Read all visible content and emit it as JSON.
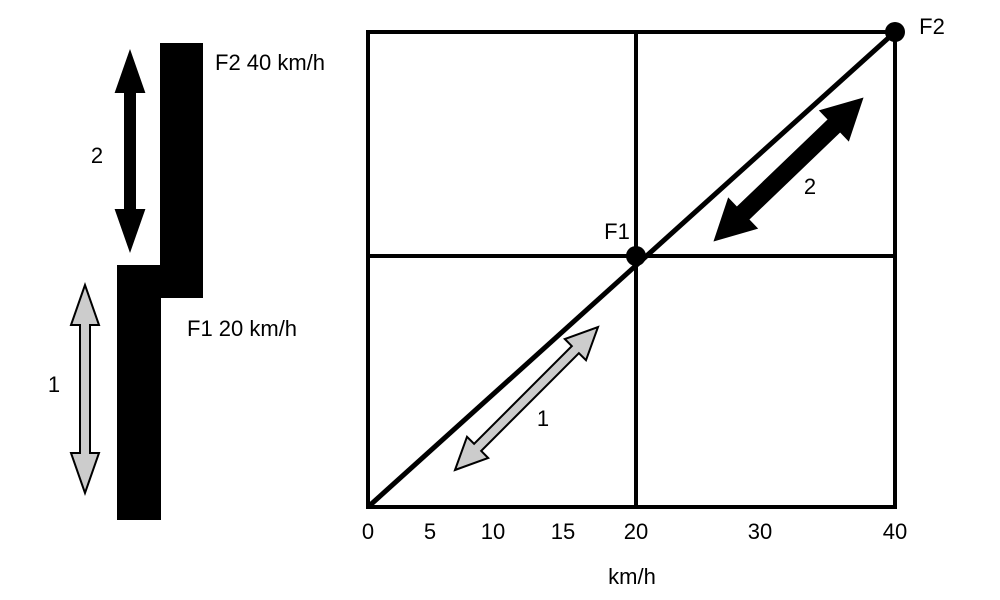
{
  "left_bar": {
    "upper_label": "F2 40 km/h",
    "lower_label": "F1 20 km/h",
    "arrows": [
      {
        "label": "2"
      },
      {
        "label": "1"
      }
    ]
  },
  "graph": {
    "points": [
      {
        "label": "F1"
      },
      {
        "label": "F2"
      }
    ],
    "arrows": [
      {
        "label": "2"
      },
      {
        "label": "1"
      }
    ],
    "x_ticks": [
      0,
      5,
      10,
      15,
      20,
      30,
      40
    ],
    "x_label": "km/h"
  }
}
